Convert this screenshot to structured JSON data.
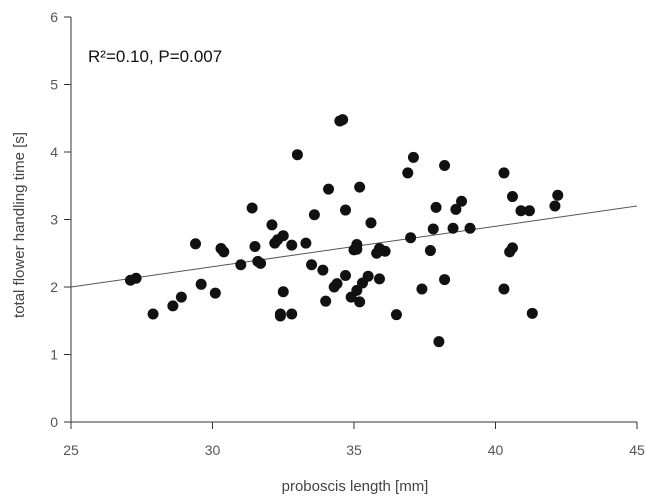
{
  "chart_data": {
    "type": "scatter",
    "title": "",
    "xlabel": "proboscis length [mm]",
    "ylabel": "total flower handling time [s]",
    "xlim": [
      25,
      45
    ],
    "ylim": [
      0,
      6
    ],
    "xticks": [
      25,
      30,
      35,
      40,
      45
    ],
    "yticks": [
      0,
      1,
      2,
      3,
      4,
      5,
      6
    ],
    "grid": false,
    "annotation": "R²=0.10, P=0.007",
    "fit_line": {
      "x": [
        25,
        45
      ],
      "y": [
        2.0,
        3.2
      ]
    },
    "points": [
      {
        "x": 27.1,
        "y": 2.1
      },
      {
        "x": 27.3,
        "y": 2.13
      },
      {
        "x": 27.9,
        "y": 1.6
      },
      {
        "x": 28.6,
        "y": 1.72
      },
      {
        "x": 28.9,
        "y": 1.85
      },
      {
        "x": 29.4,
        "y": 2.64
      },
      {
        "x": 29.6,
        "y": 2.04
      },
      {
        "x": 30.1,
        "y": 1.91
      },
      {
        "x": 30.3,
        "y": 2.57
      },
      {
        "x": 30.4,
        "y": 2.52
      },
      {
        "x": 31.0,
        "y": 2.33
      },
      {
        "x": 31.4,
        "y": 3.17
      },
      {
        "x": 31.5,
        "y": 2.6
      },
      {
        "x": 31.6,
        "y": 2.38
      },
      {
        "x": 31.7,
        "y": 2.35
      },
      {
        "x": 32.1,
        "y": 2.92
      },
      {
        "x": 32.2,
        "y": 2.65
      },
      {
        "x": 32.3,
        "y": 2.7
      },
      {
        "x": 32.4,
        "y": 1.6
      },
      {
        "x": 32.5,
        "y": 1.93
      },
      {
        "x": 32.4,
        "y": 1.57
      },
      {
        "x": 32.5,
        "y": 2.76
      },
      {
        "x": 32.8,
        "y": 2.62
      },
      {
        "x": 32.8,
        "y": 1.6
      },
      {
        "x": 33.0,
        "y": 3.96
      },
      {
        "x": 33.3,
        "y": 2.65
      },
      {
        "x": 33.5,
        "y": 2.33
      },
      {
        "x": 33.6,
        "y": 3.07
      },
      {
        "x": 33.9,
        "y": 2.25
      },
      {
        "x": 34.0,
        "y": 1.79
      },
      {
        "x": 34.1,
        "y": 3.45
      },
      {
        "x": 34.3,
        "y": 2.0
      },
      {
        "x": 34.4,
        "y": 2.05
      },
      {
        "x": 34.5,
        "y": 4.46
      },
      {
        "x": 34.6,
        "y": 4.48
      },
      {
        "x": 34.7,
        "y": 3.14
      },
      {
        "x": 34.7,
        "y": 2.17
      },
      {
        "x": 34.9,
        "y": 1.85
      },
      {
        "x": 35.0,
        "y": 2.55
      },
      {
        "x": 35.1,
        "y": 2.63
      },
      {
        "x": 35.1,
        "y": 2.56
      },
      {
        "x": 35.1,
        "y": 1.95
      },
      {
        "x": 35.2,
        "y": 3.48
      },
      {
        "x": 35.2,
        "y": 1.78
      },
      {
        "x": 35.3,
        "y": 2.06
      },
      {
        "x": 35.5,
        "y": 2.16
      },
      {
        "x": 35.6,
        "y": 2.95
      },
      {
        "x": 35.8,
        "y": 2.5
      },
      {
        "x": 35.9,
        "y": 2.57
      },
      {
        "x": 35.9,
        "y": 2.12
      },
      {
        "x": 36.1,
        "y": 2.53
      },
      {
        "x": 36.5,
        "y": 1.59
      },
      {
        "x": 36.9,
        "y": 3.69
      },
      {
        "x": 37.0,
        "y": 2.73
      },
      {
        "x": 37.1,
        "y": 3.92
      },
      {
        "x": 37.4,
        "y": 1.97
      },
      {
        "x": 37.7,
        "y": 2.54
      },
      {
        "x": 37.8,
        "y": 2.86
      },
      {
        "x": 37.9,
        "y": 3.18
      },
      {
        "x": 38.0,
        "y": 1.19
      },
      {
        "x": 38.2,
        "y": 3.8
      },
      {
        "x": 38.2,
        "y": 2.11
      },
      {
        "x": 38.5,
        "y": 2.87
      },
      {
        "x": 38.6,
        "y": 3.15
      },
      {
        "x": 38.8,
        "y": 3.27
      },
      {
        "x": 39.1,
        "y": 2.87
      },
      {
        "x": 40.3,
        "y": 3.69
      },
      {
        "x": 40.3,
        "y": 1.97
      },
      {
        "x": 40.5,
        "y": 2.52
      },
      {
        "x": 40.6,
        "y": 2.58
      },
      {
        "x": 40.6,
        "y": 3.34
      },
      {
        "x": 40.9,
        "y": 3.13
      },
      {
        "x": 41.2,
        "y": 3.13
      },
      {
        "x": 41.3,
        "y": 1.61
      },
      {
        "x": 42.1,
        "y": 3.2
      },
      {
        "x": 42.2,
        "y": 3.36
      }
    ],
    "colors": {
      "points": "#111111",
      "fit_line": "#555555",
      "axis": "#333333"
    }
  }
}
